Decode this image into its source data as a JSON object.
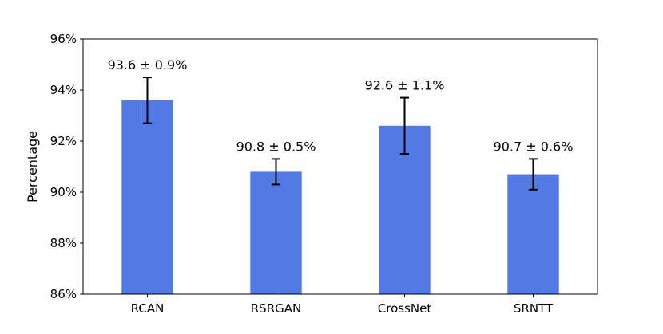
{
  "chart_data": {
    "type": "bar",
    "title": "",
    "xlabel": "",
    "ylabel": "Percentage",
    "ylim": [
      86,
      96
    ],
    "yticks": [
      86,
      88,
      90,
      92,
      94,
      96
    ],
    "ytick_labels": [
      "86%",
      "88%",
      "90%",
      "92%",
      "94%",
      "96%"
    ],
    "categories": [
      "RCAN",
      "RSRGAN",
      "CrossNet",
      "SRNTT"
    ],
    "values": [
      93.6,
      90.8,
      92.6,
      90.7
    ],
    "errors": [
      0.9,
      0.5,
      1.1,
      0.6
    ],
    "data_labels": [
      "93.6 ± 0.9%",
      "90.8 ± 0.5%",
      "92.6 ± 1.1%",
      "90.7 ± 0.6%"
    ],
    "bar_color": "#5379e4",
    "error_color": "#000000",
    "grid": false
  }
}
